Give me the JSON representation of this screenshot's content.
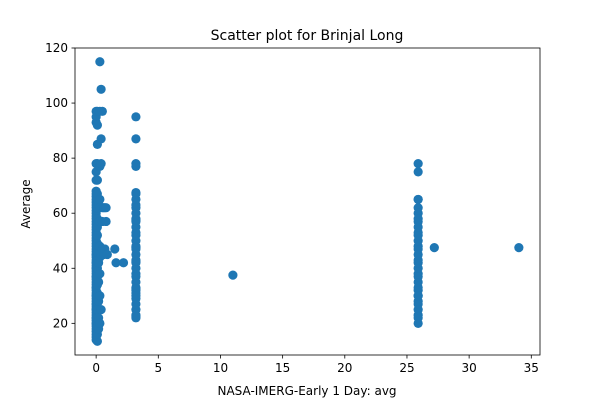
{
  "chart_data": {
    "type": "scatter",
    "title": "Scatter plot for Brinjal Long",
    "xlabel": "NASA-IMERG-Early 1 Day: avg",
    "ylabel": "Average",
    "xlim": [
      -1.7,
      35.7
    ],
    "ylim": [
      8.5,
      120
    ],
    "xticks": [
      0,
      5,
      10,
      15,
      20,
      25,
      30,
      35
    ],
    "yticks": [
      20,
      40,
      60,
      80,
      100,
      120
    ],
    "grid": false,
    "marker_color": "#1f77b4",
    "x": [
      0,
      0,
      0,
      0,
      0,
      0,
      0,
      0,
      0,
      0,
      0,
      0,
      0,
      0,
      0,
      0,
      0,
      0,
      0,
      0,
      0,
      0,
      0,
      0,
      0,
      0,
      0,
      0,
      0,
      0,
      0,
      0,
      0,
      0,
      0,
      0,
      0,
      0,
      0,
      0,
      0,
      0,
      0,
      0,
      0,
      0,
      0,
      0,
      0,
      0,
      0,
      0,
      0,
      0,
      0,
      0,
      0,
      0,
      0,
      0,
      0,
      0,
      0,
      0,
      0,
      0,
      0,
      0,
      0,
      0,
      0,
      0.1,
      0.1,
      0.1,
      0.1,
      0.1,
      0.1,
      0.1,
      0.1,
      0.1,
      0.1,
      0.1,
      0.1,
      0.1,
      0.1,
      0.1,
      0.1,
      0.1,
      0.1,
      0.1,
      0.1,
      0.1,
      0.1,
      0.1,
      0.1,
      0.2,
      0.2,
      0.2,
      0.2,
      0.2,
      0.2,
      0.2,
      0.2,
      0.3,
      0.3,
      0.3,
      0.3,
      0.3,
      0.3,
      0.3,
      0.3,
      0.3,
      0.3,
      0.3,
      0.4,
      0.4,
      0.4,
      0.4,
      0.4,
      0.5,
      0.5,
      0.5,
      0.5,
      0.6,
      0.6,
      0.7,
      0.7,
      0.8,
      0.8,
      0.9,
      1.5,
      1.6,
      2.2,
      3.2,
      3.2,
      3.2,
      3.2,
      3.2,
      3.2,
      3.2,
      3.2,
      3.2,
      3.2,
      3.2,
      3.2,
      3.2,
      3.2,
      3.2,
      3.2,
      3.2,
      3.2,
      3.2,
      3.2,
      3.2,
      3.2,
      3.2,
      3.2,
      3.2,
      3.2,
      3.2,
      3.2,
      3.2,
      3.2,
      3.2,
      3.2,
      3.2,
      3.2,
      3.2,
      3.2,
      3.2,
      3.2,
      3.2,
      11,
      25.9,
      25.9,
      25.9,
      25.9,
      25.9,
      25.9,
      25.9,
      25.9,
      25.9,
      25.9,
      25.9,
      25.9,
      25.9,
      25.9,
      25.9,
      25.9,
      25.9,
      25.9,
      25.9,
      25.9,
      25.9,
      25.9,
      25.9,
      25.9,
      25.9,
      25.9,
      25.9,
      25.9,
      25.9,
      25.9,
      25.9,
      27.2,
      34
    ],
    "y": [
      14,
      15,
      16,
      17,
      18,
      19,
      20,
      21,
      22,
      23,
      24,
      25,
      26,
      27,
      28,
      29,
      30,
      31,
      32,
      33,
      34,
      35,
      36,
      37,
      38,
      39,
      40,
      41,
      42,
      43,
      44,
      45,
      46,
      47,
      48,
      49,
      50,
      51,
      52,
      53,
      54,
      55,
      56,
      57,
      58,
      59,
      60,
      61,
      62,
      63,
      64,
      65,
      66,
      67,
      68,
      72,
      75,
      78,
      93,
      95,
      97,
      45,
      42,
      40,
      37,
      33,
      30,
      27,
      25,
      22,
      20,
      13.5,
      16,
      19,
      22,
      25,
      28,
      31,
      34,
      37,
      40,
      43,
      46,
      49,
      52,
      55,
      58,
      62,
      65,
      67,
      72,
      78,
      85,
      92,
      97,
      18,
      22,
      28,
      35,
      42,
      48,
      57,
      63,
      20,
      30,
      38,
      44,
      48,
      57,
      62,
      65,
      77,
      97,
      115,
      25,
      45,
      78,
      87,
      105,
      47,
      57,
      62,
      97,
      45,
      62,
      47,
      62,
      57,
      62,
      45,
      47,
      42,
      42,
      22,
      23,
      25,
      27,
      29,
      31,
      32,
      33,
      35,
      37,
      38,
      40,
      42,
      43,
      45,
      47,
      48,
      50,
      52,
      53,
      55,
      57,
      58,
      60,
      62,
      63,
      65,
      67,
      77,
      78,
      87,
      95,
      22.5,
      32.5,
      47.5,
      57.5,
      67.5,
      42.5,
      30,
      37.5,
      20,
      22,
      23,
      25,
      27,
      28,
      30,
      32,
      33,
      35,
      37,
      38,
      40,
      42,
      43,
      45,
      47,
      48,
      50,
      52,
      53,
      55,
      57,
      65,
      65,
      75,
      78,
      62,
      60,
      58,
      30,
      47.5,
      47.5
    ]
  }
}
